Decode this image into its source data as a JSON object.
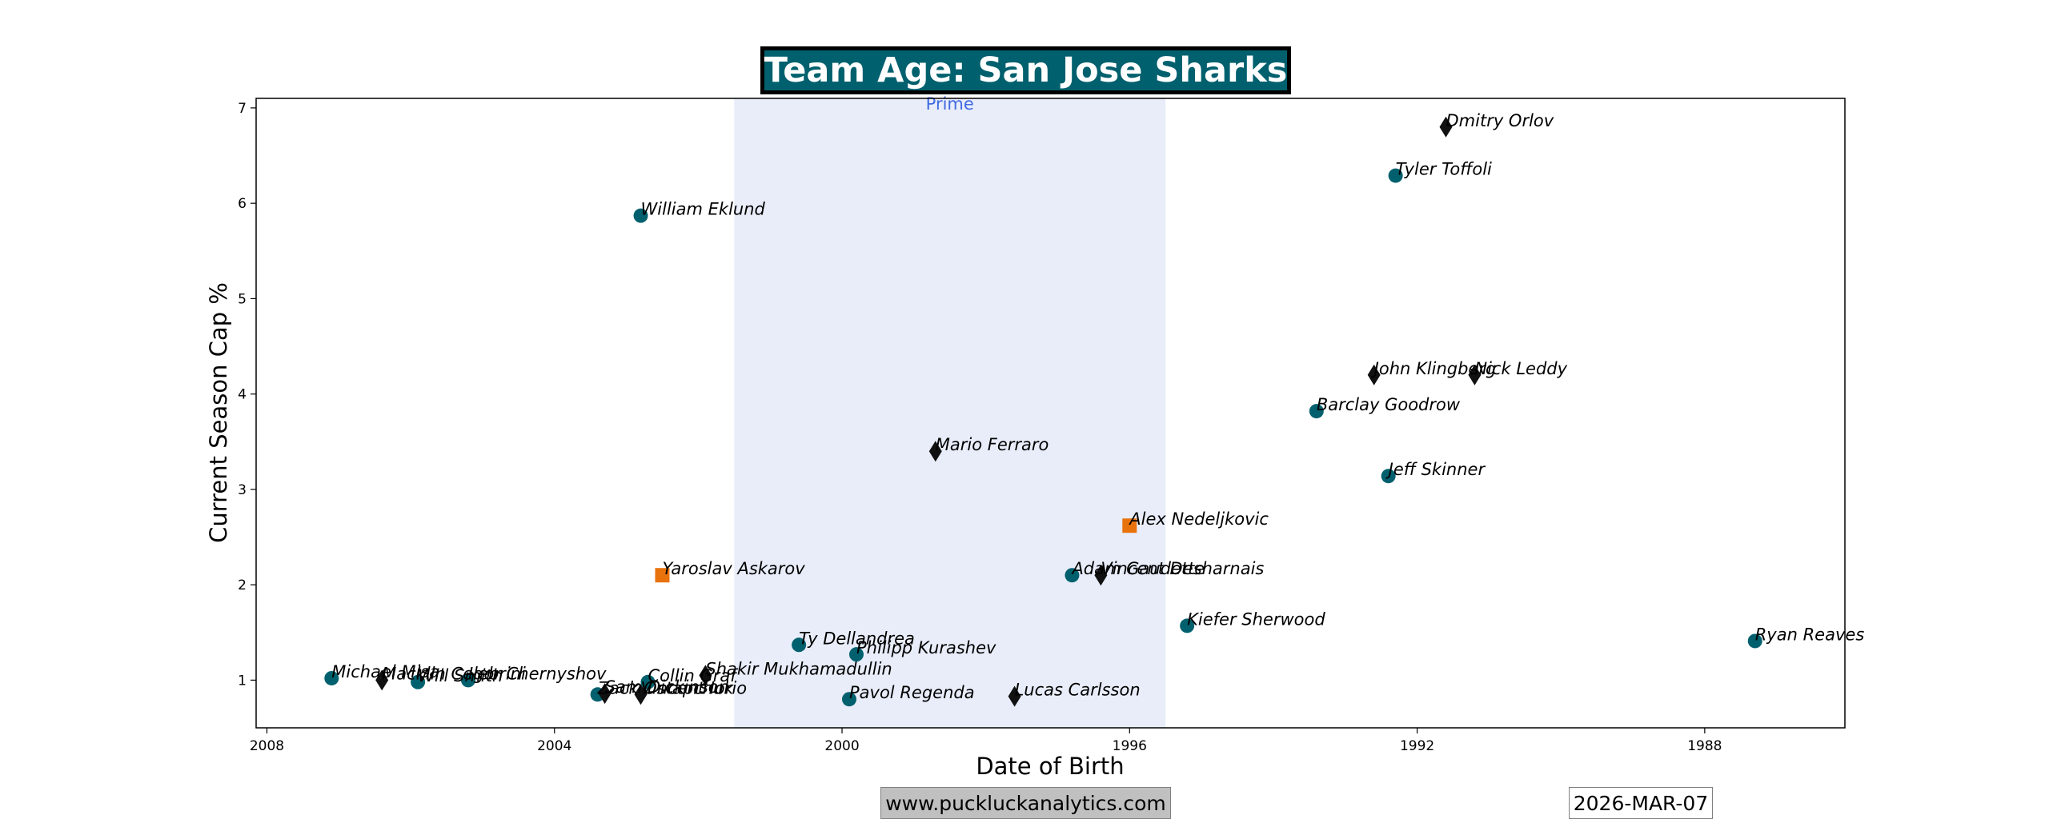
{
  "header": {
    "title": "Team Age: San Jose Sharks"
  },
  "footer": {
    "website": "www.puckluckanalytics.com",
    "date": "2026-MAR-07"
  },
  "chart_data": {
    "type": "scatter",
    "title": "Team Age: San Jose Sharks",
    "xlabel": "Date of Birth",
    "ylabel": "Current Season Cap %",
    "x_axis_reversed": true,
    "xlim": [
      2008.15,
      1986.05
    ],
    "ylim": [
      0.5,
      7.1
    ],
    "xticks": [
      2008,
      2004,
      2000,
      1996,
      1992,
      1988
    ],
    "yticks": [
      1,
      2,
      3,
      4,
      5,
      6,
      7
    ],
    "grid": false,
    "prime_band": {
      "label": "Prime",
      "x_range": [
        2001.5,
        1995.5
      ],
      "color": "#e8edf9"
    },
    "marker_colors": {
      "circle": "#00606e",
      "square": "#e8720c",
      "diamond": "#111111"
    },
    "points": [
      {
        "name": "Michael Misa",
        "x": 2007.1,
        "y": 1.02,
        "marker": "circle"
      },
      {
        "name": "Macklin Celebrini",
        "x": 2006.4,
        "y": 1.0,
        "marker": "diamond"
      },
      {
        "name": "Will Smith",
        "x": 2005.9,
        "y": 0.98,
        "marker": "circle"
      },
      {
        "name": "Igor Chernyshov",
        "x": 2005.2,
        "y": 1.0,
        "marker": "circle"
      },
      {
        "name": "Zack Ostapchuk",
        "x": 2003.4,
        "y": 0.85,
        "marker": "circle"
      },
      {
        "name": "Sam Dickinson",
        "x": 2003.3,
        "y": 0.86,
        "marker": "diamond"
      },
      {
        "name": "Vincent Iorio",
        "x": 2002.8,
        "y": 0.85,
        "marker": "diamond"
      },
      {
        "name": "William Eklund",
        "x": 2002.8,
        "y": 5.87,
        "marker": "circle"
      },
      {
        "name": "Collin Graf",
        "x": 2002.7,
        "y": 0.98,
        "marker": "circle"
      },
      {
        "name": "Yaroslav Askarov",
        "x": 2002.5,
        "y": 2.1,
        "marker": "square"
      },
      {
        "name": "Shakir Mukhamadullin",
        "x": 2001.9,
        "y": 1.05,
        "marker": "diamond"
      },
      {
        "name": "Ty Dellandrea",
        "x": 2000.6,
        "y": 1.37,
        "marker": "circle"
      },
      {
        "name": "Philipp Kurashev",
        "x": 1999.8,
        "y": 1.27,
        "marker": "circle"
      },
      {
        "name": "Pavol Regenda",
        "x": 1999.9,
        "y": 0.8,
        "marker": "circle"
      },
      {
        "name": "Mario Ferraro",
        "x": 1998.7,
        "y": 3.4,
        "marker": "diamond"
      },
      {
        "name": "Lucas Carlsson",
        "x": 1997.6,
        "y": 0.83,
        "marker": "diamond"
      },
      {
        "name": "Adam Gaudette",
        "x": 1996.8,
        "y": 2.1,
        "marker": "circle"
      },
      {
        "name": "Vincent Desharnais",
        "x": 1996.4,
        "y": 2.1,
        "marker": "diamond"
      },
      {
        "name": "Alex Nedeljkovic",
        "x": 1996.0,
        "y": 2.62,
        "marker": "square"
      },
      {
        "name": "Kiefer Sherwood",
        "x": 1995.2,
        "y": 1.57,
        "marker": "circle"
      },
      {
        "name": "Barclay Goodrow",
        "x": 1993.4,
        "y": 3.82,
        "marker": "circle"
      },
      {
        "name": "John Klingberg",
        "x": 1992.6,
        "y": 4.2,
        "marker": "diamond"
      },
      {
        "name": "Jeff Skinner",
        "x": 1992.4,
        "y": 3.14,
        "marker": "circle"
      },
      {
        "name": "Tyler Toffoli",
        "x": 1992.3,
        "y": 6.29,
        "marker": "circle"
      },
      {
        "name": "Dmitry Orlov",
        "x": 1991.6,
        "y": 6.8,
        "marker": "diamond"
      },
      {
        "name": "Nick Leddy",
        "x": 1991.2,
        "y": 4.2,
        "marker": "diamond"
      },
      {
        "name": "Ryan Reaves",
        "x": 1987.3,
        "y": 1.41,
        "marker": "circle"
      }
    ]
  }
}
